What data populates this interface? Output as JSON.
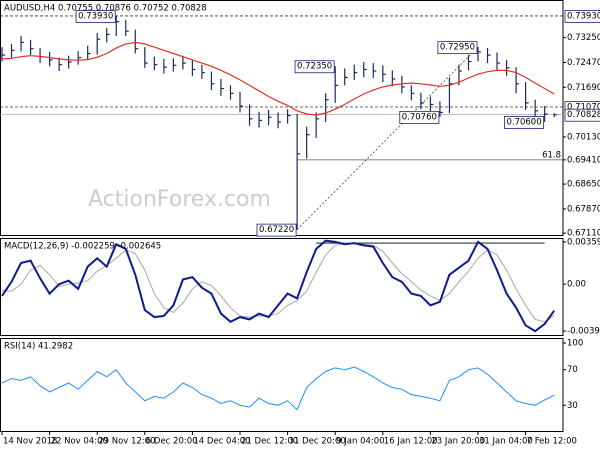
{
  "chart_data": [
    {
      "type": "ohlc",
      "title": "AUDUSD,H4  0.70755 0.70876 0.70752 0.70828",
      "watermark": "ActionForex.com",
      "color": "#1c2a5e",
      "high": [
        0.7295,
        0.7305,
        0.733,
        0.7318,
        0.7292,
        0.728,
        0.7262,
        0.7268,
        0.7282,
        0.73,
        0.734,
        0.7355,
        0.7393,
        0.738,
        0.735,
        0.7295,
        0.7265,
        0.7258,
        0.726,
        0.7268,
        0.7255,
        0.724,
        0.7218,
        0.7195,
        0.7175,
        0.7155,
        0.7115,
        0.7092,
        0.7098,
        0.709,
        0.71,
        0.7085,
        0.7045,
        0.709,
        0.715,
        0.7235,
        0.7228,
        0.724,
        0.7248,
        0.7245,
        0.7238,
        0.7222,
        0.7205,
        0.7175,
        0.7152,
        0.714,
        0.7125,
        0.72,
        0.724,
        0.727,
        0.7295,
        0.7292,
        0.7278,
        0.7255,
        0.7232,
        0.7185,
        0.713,
        0.711,
        0.70876
      ],
      "low": [
        0.725,
        0.7262,
        0.7282,
        0.727,
        0.7245,
        0.7235,
        0.722,
        0.7228,
        0.724,
        0.7255,
        0.7272,
        0.731,
        0.733,
        0.733,
        0.7275,
        0.723,
        0.7222,
        0.7212,
        0.7218,
        0.7225,
        0.7205,
        0.7195,
        0.716,
        0.7142,
        0.713,
        0.709,
        0.7048,
        0.7042,
        0.705,
        0.704,
        0.7055,
        0.6722,
        0.6945,
        0.701,
        0.706,
        0.712,
        0.7175,
        0.7192,
        0.72,
        0.7198,
        0.7185,
        0.7172,
        0.715,
        0.7128,
        0.71,
        0.7092,
        0.7076,
        0.7088,
        0.7175,
        0.7222,
        0.725,
        0.7245,
        0.722,
        0.7205,
        0.715,
        0.7098,
        0.707,
        0.706,
        0.70752
      ],
      "close": [
        0.727,
        0.7285,
        0.731,
        0.729,
        0.7265,
        0.7255,
        0.724,
        0.7248,
        0.7262,
        0.7275,
        0.732,
        0.7335,
        0.7375,
        0.7345,
        0.729,
        0.7245,
        0.724,
        0.7232,
        0.7238,
        0.7245,
        0.7225,
        0.7215,
        0.718,
        0.7165,
        0.715,
        0.711,
        0.707,
        0.7065,
        0.7075,
        0.706,
        0.708,
        0.696,
        0.702,
        0.707,
        0.713,
        0.7175,
        0.72,
        0.7215,
        0.7225,
        0.722,
        0.721,
        0.7195,
        0.717,
        0.715,
        0.712,
        0.7115,
        0.709,
        0.718,
        0.722,
        0.725,
        0.728,
        0.727,
        0.7245,
        0.723,
        0.718,
        0.712,
        0.7095,
        0.7085,
        0.70828
      ],
      "ma": {
        "color": "#e0302a",
        "values": [
          0.7258,
          0.726,
          0.7265,
          0.7268,
          0.7266,
          0.7262,
          0.7258,
          0.7255,
          0.7254,
          0.7256,
          0.7263,
          0.7275,
          0.7292,
          0.7305,
          0.731,
          0.7305,
          0.7295,
          0.7285,
          0.7275,
          0.7265,
          0.7255,
          0.7245,
          0.7235,
          0.7222,
          0.7208,
          0.7192,
          0.7175,
          0.7158,
          0.714,
          0.7125,
          0.7112,
          0.7095,
          0.7085,
          0.7082,
          0.7088,
          0.71,
          0.7115,
          0.7132,
          0.7148,
          0.716,
          0.717,
          0.7176,
          0.718,
          0.7182,
          0.718,
          0.7176,
          0.7172,
          0.7175,
          0.7185,
          0.7198,
          0.721,
          0.7218,
          0.7222,
          0.7222,
          0.7215,
          0.72,
          0.7182,
          0.7165,
          0.7148
        ]
      },
      "ylim": [
        0.6702,
        0.7443
      ],
      "yticks": [
        {
          "value": 0.7325,
          "label": "0.73250"
        },
        {
          "value": 0.7247,
          "label": "0.72470"
        },
        {
          "value": 0.7169,
          "label": "0.71690"
        },
        {
          "value": 0.7013,
          "label": "0.70130"
        },
        {
          "value": 0.6941,
          "label": "0.69410"
        },
        {
          "value": 0.6865,
          "label": "0.68650"
        },
        {
          "value": 0.6787,
          "label": "0.67870"
        },
        {
          "value": 0.6711,
          "label": "0.67110"
        }
      ],
      "hlines": [
        {
          "value": 0.7393,
          "label": "0.73930"
        },
        {
          "value": 0.7107,
          "label": "0.71070"
        }
      ],
      "price_label": {
        "value": 0.70828,
        "label": "0.70828"
      },
      "fib_line": {
        "value": 0.6941,
        "label": "61.8",
        "x": 31
      },
      "trendline": {
        "x": [
          31,
          50
        ],
        "y": [
          0.6722,
          0.7295
        ]
      },
      "annotations": [
        {
          "x": 12,
          "value": 0.7393,
          "label": "0.73930"
        },
        {
          "x": 35,
          "value": 0.7235,
          "label": "0.72350"
        },
        {
          "x": 50,
          "value": 0.7295,
          "label": "0.72950"
        },
        {
          "x": 46,
          "value": 0.7076,
          "label": "0.70760"
        },
        {
          "x": 57,
          "value": 0.706,
          "label": "0.70600"
        },
        {
          "x": 31,
          "value": 0.6722,
          "label": "0.67220"
        }
      ]
    },
    {
      "type": "macd",
      "title": "MACD(12,26,9) -0.002259 -0.002645",
      "series": [
        {
          "color": "#0d1b8e",
          "values": [
            -0.001,
            0.0002,
            0.0018,
            0.002,
            0.0005,
            -0.0008,
            0.0,
            0.0003,
            -0.0004,
            0.0015,
            0.0022,
            0.0015,
            0.0034,
            0.003,
            0.0008,
            -0.0022,
            -0.0028,
            -0.0027,
            -0.0018,
            0.0004,
            0.0006,
            -0.0003,
            -0.0008,
            -0.0025,
            -0.0032,
            -0.0028,
            -0.003,
            -0.0025,
            -0.0028,
            -0.0018,
            -0.0008,
            -0.0012,
            0.001,
            0.003,
            0.0037,
            0.0036,
            0.0034,
            0.0035,
            0.0033,
            0.0032,
            0.0018,
            0.0006,
            0.0002,
            -0.0008,
            -0.001,
            -0.0018,
            -0.0015,
            0.0008,
            0.0014,
            0.002,
            0.0036,
            0.003,
            0.0012,
            -0.0008,
            -0.002,
            -0.0035,
            -0.004,
            -0.0034,
            -0.002259
          ]
        },
        {
          "color": "#a8a8a8",
          "values": [
            -0.0005,
            -0.0006,
            0.0,
            0.0012,
            0.0016,
            0.0008,
            -0.0002,
            0.0,
            0.0001,
            0.0003,
            0.0011,
            0.0016,
            0.0022,
            0.0029,
            0.0026,
            0.0012,
            -0.0008,
            -0.002,
            -0.0024,
            -0.0016,
            -0.0004,
            0.0002,
            -0.0001,
            -0.001,
            -0.002,
            -0.0027,
            -0.0028,
            -0.0027,
            -0.0027,
            -0.0025,
            -0.0018,
            -0.0014,
            -0.0006,
            0.001,
            0.0025,
            0.0033,
            0.0035,
            0.0035,
            0.0034,
            0.0033,
            0.0028,
            0.0018,
            0.0009,
            0.0002,
            -0.0005,
            -0.001,
            -0.0014,
            -0.0008,
            0.0002,
            0.0011,
            0.0022,
            0.0029,
            0.0025,
            0.0012,
            -0.0004,
            -0.0018,
            -0.003,
            -0.0032,
            -0.002645
          ]
        }
      ],
      "ylim": [
        -0.00441,
        0.00393
      ],
      "yticks": [
        0.003592,
        {
          "value": 0,
          "label": "0.00"
        },
        -0.003986
      ],
      "hline": {
        "value": 0.0035,
        "x": [
          33,
          57
        ]
      }
    },
    {
      "type": "rsi",
      "title": "RSI(14) 41.2982",
      "color": "#1e90ff",
      "values": [
        55,
        60,
        58,
        62,
        52,
        45,
        50,
        55,
        48,
        58,
        68,
        62,
        70,
        55,
        45,
        35,
        40,
        38,
        45,
        55,
        50,
        42,
        38,
        32,
        35,
        30,
        28,
        38,
        32,
        30,
        35,
        25,
        50,
        60,
        68,
        72,
        70,
        73,
        68,
        62,
        55,
        50,
        48,
        42,
        40,
        38,
        35,
        58,
        62,
        70,
        72,
        65,
        55,
        45,
        35,
        32,
        30,
        36,
        41.2982
      ],
      "ylim": [
        0,
        105.6
      ],
      "yticks": [
        100,
        70,
        30
      ],
      "xticks": [
        {
          "value": 0,
          "label": "14 Nov 2018"
        },
        {
          "value": 5,
          "label": "22 Nov 04:00"
        },
        {
          "value": 10,
          "label": "29 Nov 12:00"
        },
        {
          "value": 15,
          "label": "6 Dec 20:00"
        },
        {
          "value": 20,
          "label": "14 Dec 04:00"
        },
        {
          "value": 25,
          "label": "21 Dec 12:00"
        },
        {
          "value": 30,
          "label": "31 Dec 20:00"
        },
        {
          "value": 35,
          "label": "9 Jan 04:00"
        },
        {
          "value": 40,
          "label": "16 Jan 12:00"
        },
        {
          "value": 45,
          "label": "23 Jan 20:00"
        },
        {
          "value": 50,
          "label": "31 Jan 04:00"
        },
        {
          "value": 55,
          "label": "7 Feb 12:00"
        }
      ]
    }
  ]
}
